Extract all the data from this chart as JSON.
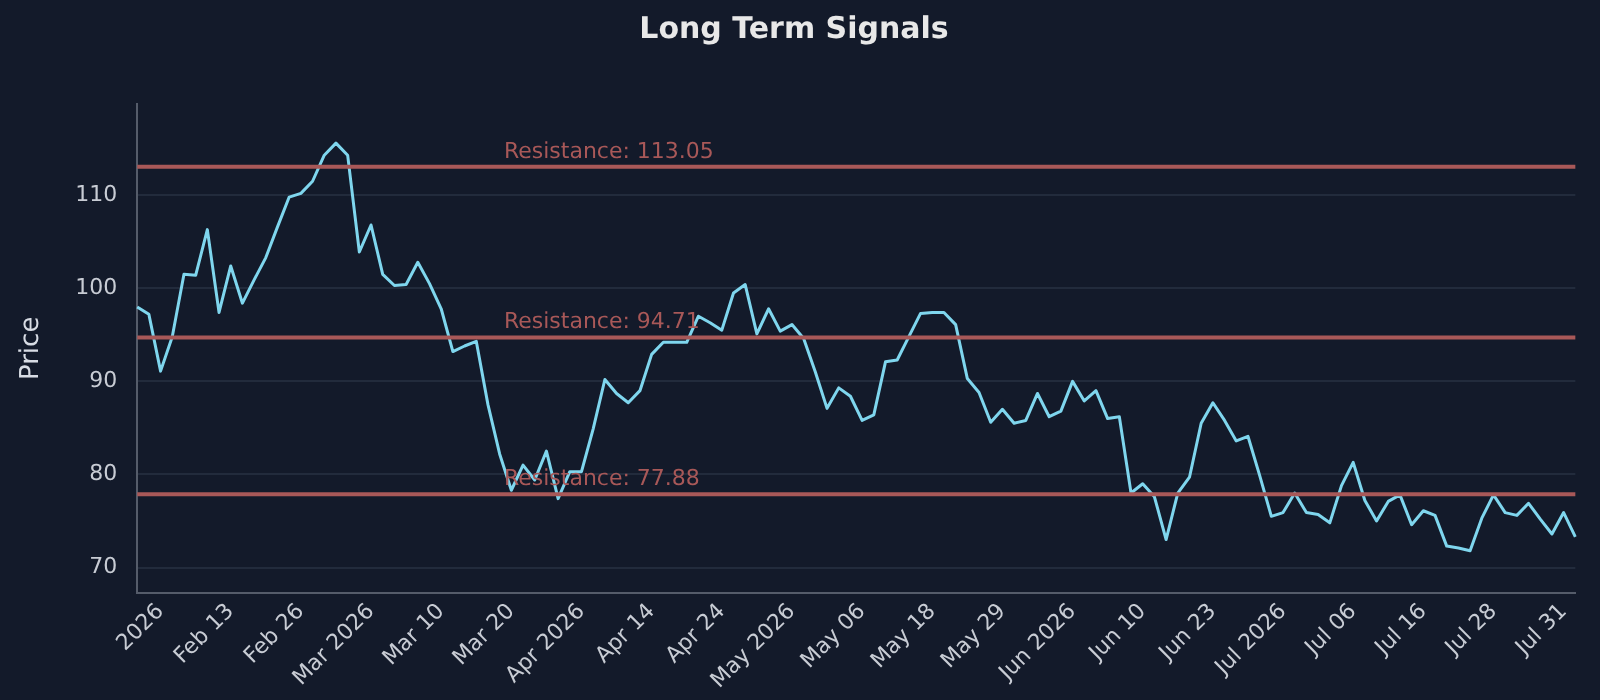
{
  "chart_data": {
    "type": "line",
    "title": "Long Term Signals",
    "ylabel": "Price",
    "categories": [
      null,
      null,
      "2026",
      null,
      null,
      null,
      null,
      null,
      "Feb 13",
      null,
      null,
      null,
      null,
      null,
      "Feb 26",
      null,
      null,
      null,
      null,
      null,
      "Mar 2026",
      null,
      null,
      null,
      null,
      null,
      "Mar 10",
      null,
      null,
      null,
      null,
      null,
      "Mar 20",
      null,
      null,
      null,
      null,
      null,
      "Apr 2026",
      null,
      null,
      null,
      null,
      null,
      "Apr 14",
      null,
      null,
      null,
      null,
      null,
      "Apr 24",
      null,
      null,
      null,
      null,
      null,
      "May 2026",
      null,
      null,
      null,
      null,
      null,
      "May 06",
      null,
      null,
      null,
      null,
      null,
      "May 18",
      null,
      null,
      null,
      null,
      null,
      "May 29",
      null,
      null,
      null,
      null,
      null,
      "Jun 2026",
      null,
      null,
      null,
      null,
      null,
      "Jun 10",
      null,
      null,
      null,
      null,
      null,
      "Jun 23",
      null,
      null,
      null,
      null,
      null,
      "Jul 2026",
      null,
      null,
      null,
      null,
      null,
      "Jul 06",
      null,
      null,
      null,
      null,
      null,
      "Jul 16",
      null,
      null,
      null,
      null,
      null,
      "Jul 28",
      null,
      null,
      null,
      null,
      null,
      "Jul 31",
      null
    ],
    "series": [
      {
        "color": "#7fd6ee",
        "values": [
          98.0,
          97.2,
          91.1,
          94.8,
          101.5,
          101.4,
          106.3,
          97.4,
          102.4,
          98.4,
          100.9,
          103.3,
          106.6,
          109.8,
          110.2,
          111.5,
          114.3,
          115.6,
          114.3,
          103.9,
          106.8,
          101.5,
          100.3,
          100.4,
          102.8,
          100.5,
          97.8,
          93.2,
          93.8,
          94.3,
          87.5,
          82.2,
          78.3,
          81.0,
          79.4,
          82.5,
          77.4,
          80.3,
          80.3,
          84.9,
          90.2,
          88.7,
          87.7,
          89.0,
          92.9,
          94.2,
          94.2,
          94.2,
          97.0,
          96.3,
          95.5,
          99.5,
          100.4,
          95.1,
          97.8,
          95.4,
          96.1,
          94.6,
          91.0,
          87.1,
          89.3,
          88.4,
          85.8,
          86.4,
          92.1,
          92.3,
          94.8,
          97.3,
          97.4,
          97.4,
          96.1,
          90.3,
          88.8,
          85.6,
          87.0,
          85.5,
          85.8,
          88.7,
          86.2,
          86.8,
          90.0,
          87.9,
          89.0,
          86.0,
          86.2,
          78.0,
          79.0,
          77.6,
          73.0,
          78.0,
          79.7,
          85.5,
          87.7,
          85.8,
          83.6,
          84.1,
          79.9,
          75.5,
          75.9,
          78.0,
          75.9,
          75.7,
          74.8,
          78.8,
          81.3,
          77.2,
          75.0,
          77.1,
          77.8,
          74.6,
          76.1,
          75.6,
          72.3,
          72.1,
          71.8,
          75.3,
          77.8,
          75.9,
          75.6,
          76.9,
          75.2,
          73.6,
          75.9,
          73.3
        ]
      }
    ],
    "ylim": [
      67.3,
      119.8
    ],
    "yticks": [
      70,
      80,
      90,
      100,
      110
    ],
    "grid": "y",
    "marker": "none",
    "line_style": "solid",
    "ref_lines": [
      {
        "axis": "y",
        "value": 113.05,
        "label": "Resistance: 113.05",
        "color": "#a85858"
      },
      {
        "axis": "y",
        "value": 94.71,
        "label": "Resistance: 94.71",
        "color": "#a85858"
      },
      {
        "axis": "y",
        "value": 77.88,
        "label": "Resistance: 77.88",
        "color": "#a85858"
      }
    ]
  }
}
